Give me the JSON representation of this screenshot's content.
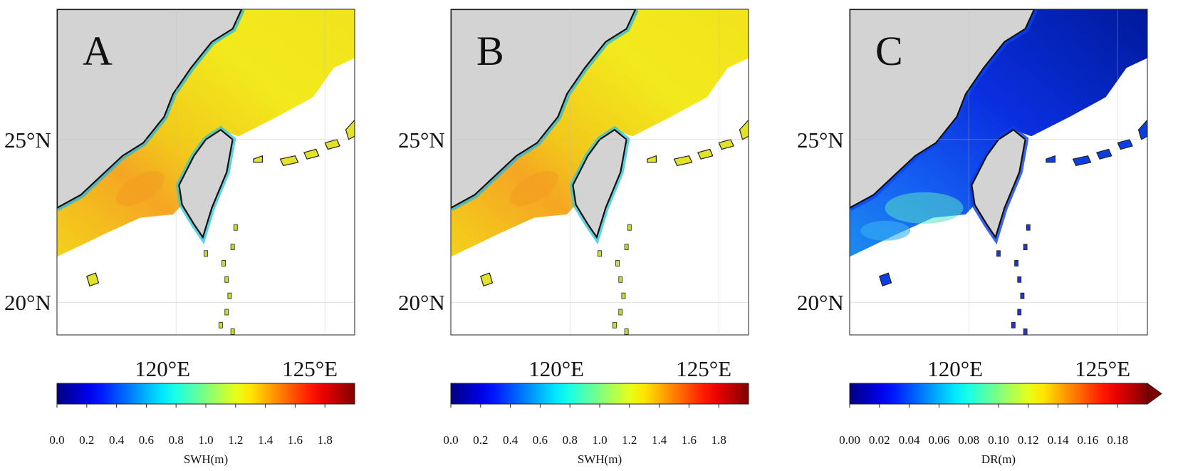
{
  "panels": [
    {
      "letter": "A",
      "field": "swh",
      "lat_ticks": [
        "25°N",
        "20°N"
      ],
      "lon_ticks": [
        "120°E",
        "125°E"
      ],
      "colorbar": {
        "ticks": [
          "0.0",
          "0.2",
          "0.4",
          "0.6",
          "0.8",
          "1.0",
          "1.2",
          "1.4",
          "1.6",
          "1.8"
        ],
        "label": "SWH(m)",
        "range": [
          0.0,
          2.0
        ],
        "extend_arrow": false
      }
    },
    {
      "letter": "B",
      "field": "swh",
      "lat_ticks": [
        "25°N",
        "20°N"
      ],
      "lon_ticks": [
        "120°E",
        "125°E"
      ],
      "colorbar": {
        "ticks": [
          "0.0",
          "0.2",
          "0.4",
          "0.6",
          "0.8",
          "1.0",
          "1.2",
          "1.4",
          "1.6",
          "1.8"
        ],
        "label": "SWH(m)",
        "range": [
          0.0,
          2.0
        ],
        "extend_arrow": false
      }
    },
    {
      "letter": "C",
      "field": "dr",
      "lat_ticks": [
        "25°N",
        "20°N"
      ],
      "lon_ticks": [
        "120°E",
        "125°E"
      ],
      "colorbar": {
        "ticks": [
          "0.00",
          "0.02",
          "0.04",
          "0.06",
          "0.08",
          "0.10",
          "0.12",
          "0.14",
          "0.16",
          "0.18"
        ],
        "label": "DR(m)",
        "range": [
          0.0,
          0.2
        ],
        "extend_arrow": true
      }
    }
  ],
  "colors": {
    "land": "#d3d3d3",
    "coast": "#111111",
    "swh_sea": "#f2ea1c",
    "swh_peak": "#f5a623",
    "dr_sea": "#0a2fe0",
    "dr_deep": "#001a9a"
  },
  "colormap": "jet",
  "map_extent": {
    "lon": [
      116,
      126
    ],
    "lat": [
      19,
      29
    ]
  }
}
